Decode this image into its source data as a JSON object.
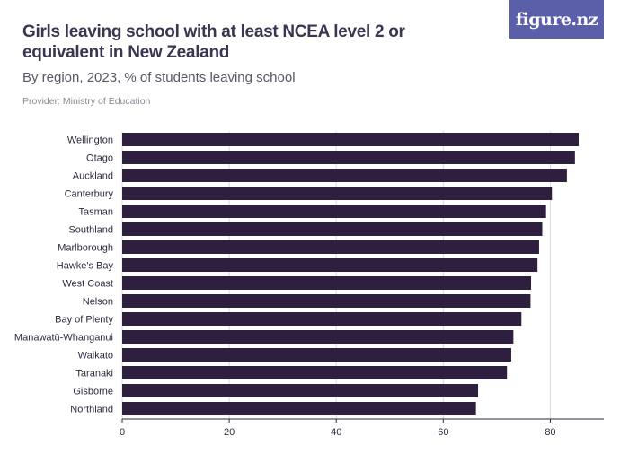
{
  "header": {
    "title": "Girls leaving school with at least NCEA level 2 or equivalent in New Zealand",
    "subtitle": "By region, 2023, % of students leaving school",
    "provider": "Provider: Ministry of Education"
  },
  "logo": {
    "text": "figure.nz",
    "color": "#5b5ea8"
  },
  "colors": {
    "bar": "#2e1f3f",
    "grid": "#d9d9d9",
    "axis": "#2d2a3e"
  },
  "chart_data": {
    "type": "bar",
    "orientation": "horizontal",
    "title": "Girls leaving school with at least NCEA level 2 or equivalent in New Zealand",
    "subtitle": "By region, 2023, % of students leaving school",
    "xlabel": "",
    "ylabel": "",
    "xlim": [
      0,
      90
    ],
    "xticks": [
      0,
      20,
      40,
      60,
      80
    ],
    "grid": true,
    "categories": [
      "Wellington",
      "Otago",
      "Auckland",
      "Canterbury",
      "Tasman",
      "Southland",
      "Marlborough",
      "Hawke's Bay",
      "West Coast",
      "Nelson",
      "Bay of Plenty",
      "Manawatū-Whanganui",
      "Waikato",
      "Taranaki",
      "Gisborne",
      "Northland"
    ],
    "values": [
      85.3,
      84.6,
      83.1,
      80.3,
      79.2,
      78.5,
      77.9,
      77.6,
      76.4,
      76.3,
      74.6,
      73.1,
      72.7,
      71.9,
      66.5,
      66.1
    ]
  }
}
